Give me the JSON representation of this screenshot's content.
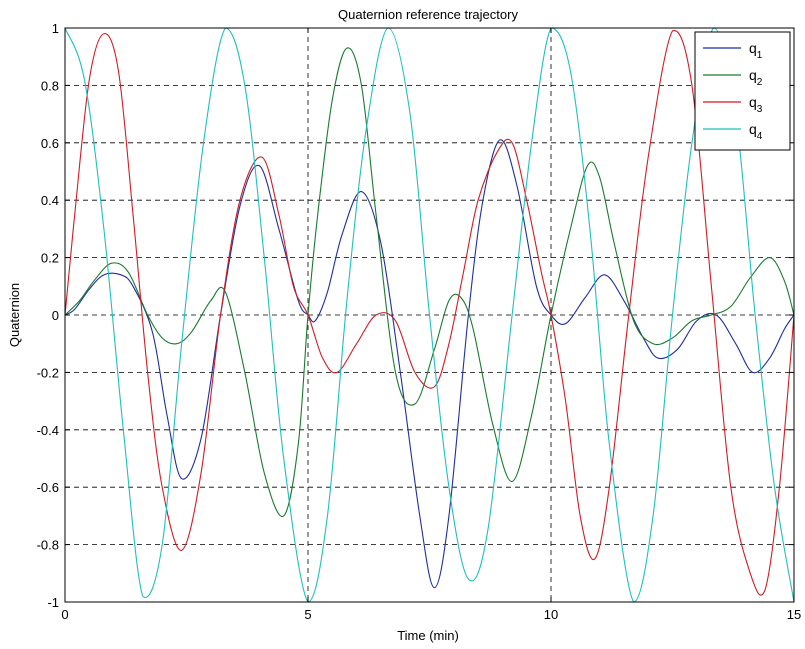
{
  "chart_data": {
    "type": "line",
    "title": "Quaternion reference trajectory",
    "xlabel": "Time (min)",
    "ylabel": "Quaternion",
    "xlim": [
      0,
      15
    ],
    "ylim": [
      -1,
      1
    ],
    "xticks": [
      0,
      5,
      10,
      15
    ],
    "xtick_labels": [
      "0",
      "5",
      "10",
      "15"
    ],
    "yticks": [
      -1,
      -0.8,
      -0.6,
      -0.4,
      -0.2,
      0,
      0.2,
      0.4,
      0.6,
      0.8,
      1
    ],
    "ytick_labels": [
      "-1",
      "-0.8",
      "-0.6",
      "-0.4",
      "-0.2",
      "0",
      "0.2",
      "0.4",
      "0.6",
      "0.8",
      "1"
    ],
    "grid": true,
    "legend_position": "top-right",
    "series": [
      {
        "name": "q",
        "subscript": "1",
        "color": "#1f2ea0",
        "x": [
          0,
          0.2,
          0.5,
          0.8,
          1.15,
          1.4,
          1.8,
          2.1,
          2.4,
          2.8,
          3.2,
          3.6,
          4.0,
          4.4,
          4.8,
          5.0,
          5.15,
          5.4,
          5.7,
          6.1,
          6.5,
          6.9,
          7.3,
          7.6,
          7.9,
          8.3,
          8.6,
          8.95,
          9.3,
          9.7,
          10.0,
          10.3,
          10.7,
          11.1,
          11.5,
          11.9,
          12.2,
          12.6,
          13.0,
          13.4,
          13.8,
          14.15,
          14.5,
          14.8,
          15.0
        ],
        "y": [
          0.0,
          0.02,
          0.09,
          0.14,
          0.14,
          0.1,
          -0.06,
          -0.35,
          -0.57,
          -0.43,
          0.0,
          0.38,
          0.52,
          0.3,
          0.05,
          0.0,
          -0.02,
          0.08,
          0.28,
          0.43,
          0.25,
          -0.2,
          -0.7,
          -0.95,
          -0.7,
          0.0,
          0.4,
          0.61,
          0.45,
          0.1,
          0.0,
          -0.03,
          0.06,
          0.14,
          0.05,
          -0.08,
          -0.15,
          -0.12,
          -0.02,
          0.0,
          -0.1,
          -0.2,
          -0.15,
          -0.05,
          0.0
        ]
      },
      {
        "name": "q",
        "subscript": "2",
        "color": "#1b7a2d",
        "x": [
          0,
          0.3,
          0.6,
          0.95,
          1.3,
          1.7,
          2.0,
          2.3,
          2.6,
          3.0,
          3.3,
          3.7,
          4.1,
          4.5,
          4.8,
          5.0,
          5.2,
          5.5,
          5.8,
          6.1,
          6.4,
          6.8,
          7.2,
          7.6,
          7.9,
          8.15,
          8.4,
          8.8,
          9.2,
          9.6,
          10.0,
          10.4,
          10.75,
          11.0,
          11.3,
          11.7,
          12.1,
          12.5,
          12.9,
          13.3,
          13.7,
          14.1,
          14.5,
          14.8,
          15.0
        ],
        "y": [
          0.0,
          0.05,
          0.12,
          0.18,
          0.15,
          0.0,
          -0.08,
          -0.1,
          -0.06,
          0.05,
          0.08,
          -0.2,
          -0.55,
          -0.7,
          -0.45,
          0.0,
          0.35,
          0.75,
          0.93,
          0.8,
          0.35,
          -0.2,
          -0.31,
          -0.12,
          0.05,
          0.06,
          -0.05,
          -0.38,
          -0.58,
          -0.35,
          0.0,
          0.3,
          0.52,
          0.48,
          0.25,
          -0.02,
          -0.1,
          -0.08,
          -0.02,
          0.0,
          0.03,
          0.13,
          0.2,
          0.12,
          0.0
        ]
      },
      {
        "name": "q",
        "subscript": "3",
        "color": "#d01c24",
        "x": [
          0,
          0.2,
          0.5,
          0.8,
          1.1,
          1.4,
          1.7,
          2.0,
          2.4,
          2.8,
          3.2,
          3.6,
          4.05,
          4.4,
          4.7,
          5.0,
          5.3,
          5.6,
          6.0,
          6.4,
          6.8,
          7.2,
          7.6,
          7.9,
          8.2,
          8.5,
          8.9,
          9.2,
          9.5,
          9.8,
          10.0,
          10.3,
          10.6,
          10.9,
          11.2,
          11.6,
          12.0,
          12.5,
          12.9,
          13.3,
          13.7,
          14.1,
          14.4,
          14.7,
          15.0
        ],
        "y": [
          0.0,
          0.35,
          0.82,
          0.98,
          0.85,
          0.35,
          -0.2,
          -0.6,
          -0.82,
          -0.55,
          0.0,
          0.4,
          0.55,
          0.35,
          0.1,
          0.0,
          -0.15,
          -0.2,
          -0.1,
          0.0,
          -0.02,
          -0.2,
          -0.25,
          -0.1,
          0.15,
          0.4,
          0.57,
          0.6,
          0.4,
          0.15,
          0.0,
          -0.3,
          -0.7,
          -0.85,
          -0.6,
          0.0,
          0.55,
          0.99,
          0.8,
          0.1,
          -0.6,
          -0.9,
          -0.96,
          -0.6,
          0.0
        ]
      },
      {
        "name": "q",
        "subscript": "4",
        "color": "#1fbfbf",
        "x": [
          0,
          0.4,
          0.8,
          1.2,
          1.6,
          2.0,
          2.4,
          2.85,
          3.3,
          3.7,
          4.1,
          4.5,
          5.0,
          5.4,
          5.8,
          6.2,
          6.65,
          7.1,
          7.5,
          7.9,
          8.3,
          8.7,
          9.2,
          9.6,
          10.0,
          10.4,
          10.8,
          11.2,
          11.7,
          12.1,
          12.5,
          12.9,
          13.35,
          13.8,
          14.2,
          14.6,
          15.0
        ],
        "y": [
          1.0,
          0.82,
          0.3,
          -0.4,
          -0.98,
          -0.8,
          -0.1,
          0.6,
          1.0,
          0.8,
          0.2,
          -0.5,
          -1.0,
          -0.7,
          0.05,
          0.65,
          1.0,
          0.7,
          0.0,
          -0.6,
          -0.92,
          -0.75,
          0.0,
          0.6,
          1.0,
          0.85,
          0.3,
          -0.45,
          -1.0,
          -0.7,
          0.0,
          0.6,
          1.0,
          0.7,
          0.0,
          -0.6,
          -1.0
        ]
      }
    ]
  }
}
